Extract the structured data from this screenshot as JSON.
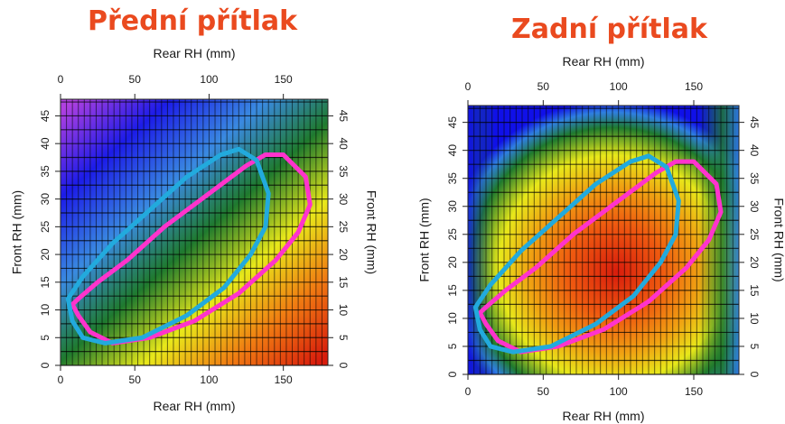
{
  "chart_data": [
    {
      "type": "heatmap",
      "title": "Přední přítlak",
      "xlabel_top": "Rear RH (mm)",
      "xlabel_bottom": "Rear RH (mm)",
      "ylabel_left": "Front RH (mm)",
      "ylabel_right": "Front RH (mm)",
      "xlim": [
        0,
        180
      ],
      "ylim": [
        0,
        48
      ],
      "x_ticks": [
        "0",
        "50",
        "100",
        "150"
      ],
      "x_tick_values": [
        0,
        50,
        100,
        150
      ],
      "y_ticks": [
        "0",
        "5",
        "10",
        "15",
        "20",
        "25",
        "30",
        "35",
        "40",
        "45"
      ],
      "y_tick_values": [
        0,
        5,
        10,
        15,
        20,
        25,
        30,
        35,
        40,
        45
      ],
      "grid": true,
      "colormap_low_to_high": [
        "#9b2bd0",
        "#1010e8",
        "#2f7fe0",
        "#1f7a2e",
        "#e8e81a",
        "#f07a12",
        "#d81c0c"
      ],
      "series": [
        {
          "color": "#ff33cc",
          "x": [
            20,
            35,
            60,
            90,
            120,
            145,
            160,
            168,
            165,
            150,
            138,
            125,
            100,
            70,
            45,
            25,
            12,
            8,
            12,
            20
          ],
          "y": [
            6,
            4,
            5,
            8,
            13,
            19,
            24,
            29,
            34,
            38,
            38,
            36,
            31,
            25,
            19,
            15,
            12,
            11,
            9,
            6
          ]
        },
        {
          "color": "#22aadd",
          "x": [
            15,
            30,
            55,
            85,
            110,
            128,
            138,
            140,
            132,
            120,
            108,
            85,
            60,
            35,
            15,
            5,
            8,
            15
          ],
          "y": [
            5,
            4,
            5,
            9,
            14,
            20,
            25,
            31,
            37,
            39,
            38,
            34,
            28,
            22,
            16,
            12,
            8,
            5
          ]
        }
      ]
    },
    {
      "type": "heatmap",
      "title": "Zadní přítlak",
      "xlabel_top": "Rear RH (mm)",
      "xlabel_bottom": "Rear RH (mm)",
      "ylabel_left": "Front RH (mm)",
      "ylabel_right": "Front RH (mm)",
      "xlim": [
        0,
        180
      ],
      "ylim": [
        0,
        48
      ],
      "x_ticks": [
        "0",
        "50",
        "100",
        "150"
      ],
      "x_tick_values": [
        0,
        50,
        100,
        150
      ],
      "y_ticks": [
        "0",
        "5",
        "10",
        "15",
        "20",
        "25",
        "30",
        "35",
        "40",
        "45"
      ],
      "y_tick_values": [
        0,
        5,
        10,
        15,
        20,
        25,
        30,
        35,
        40,
        45
      ],
      "grid": true,
      "colormap_low_to_high": [
        "#1010e8",
        "#2f7fe0",
        "#1f7a2e",
        "#e8e81a",
        "#f07a12",
        "#d81c0c"
      ],
      "series": [
        {
          "color": "#ff33cc",
          "x": [
            20,
            35,
            60,
            90,
            120,
            145,
            160,
            168,
            165,
            150,
            138,
            125,
            100,
            70,
            45,
            25,
            12,
            8,
            12,
            20
          ],
          "y": [
            6,
            4,
            5,
            8,
            13,
            19,
            24,
            29,
            34,
            38,
            38,
            36,
            31,
            25,
            19,
            15,
            12,
            11,
            9,
            6
          ]
        },
        {
          "color": "#22aadd",
          "x": [
            15,
            30,
            55,
            85,
            110,
            128,
            138,
            140,
            132,
            120,
            108,
            85,
            60,
            35,
            15,
            5,
            8,
            15
          ],
          "y": [
            5,
            4,
            5,
            9,
            14,
            20,
            25,
            31,
            37,
            39,
            38,
            34,
            28,
            22,
            16,
            12,
            8,
            5
          ]
        }
      ]
    }
  ]
}
